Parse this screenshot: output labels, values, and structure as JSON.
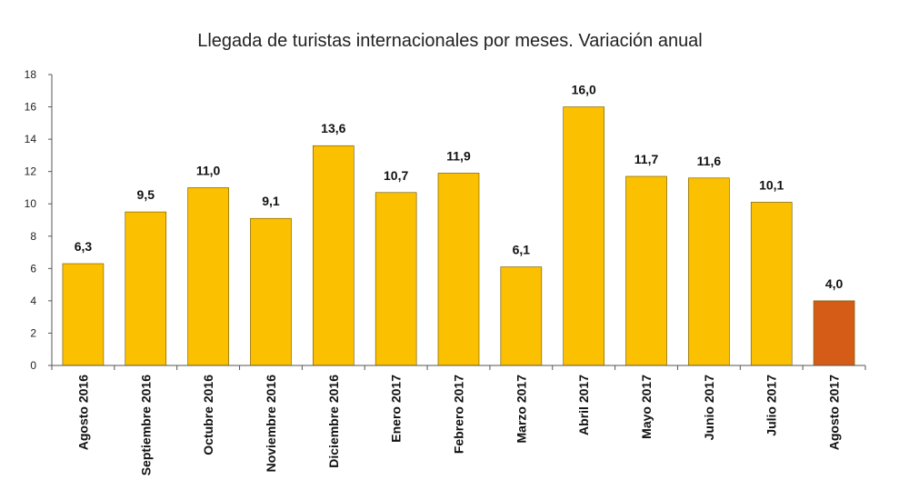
{
  "chart_data": {
    "type": "bar",
    "title": "Llegada de turistas internacionales por meses. Variación anual",
    "categories": [
      "Agosto 2016",
      "Septiembre 2016",
      "Octubre 2016",
      "Noviembre 2016",
      "Diciembre 2016",
      "Enero 2017",
      "Febrero 2017",
      "Marzo 2017",
      "Abril 2017",
      "Mayo 2017",
      "Junio 2017",
      "Julio 2017",
      "Agosto 2017"
    ],
    "values": [
      6.3,
      9.5,
      11.0,
      9.1,
      13.6,
      10.7,
      11.9,
      6.1,
      16.0,
      11.7,
      11.6,
      10.1,
      4.0
    ],
    "data_labels": [
      "6,3",
      "9,5",
      "11,0",
      "9,1",
      "13,6",
      "10,7",
      "11,9",
      "6,1",
      "16,0",
      "11,7",
      "11,6",
      "10,1",
      "4,0"
    ],
    "ylim": [
      0,
      18
    ],
    "yticks": [
      "0",
      "2",
      "4",
      "6",
      "8",
      "10",
      "12",
      "14",
      "16",
      "18"
    ],
    "colors": {
      "bar": "#FBC000",
      "highlight": "#D55C16",
      "bar_stroke": "#6b5200",
      "axis": "#555555"
    },
    "highlight_index": 12,
    "grid": false,
    "legend": "none"
  }
}
